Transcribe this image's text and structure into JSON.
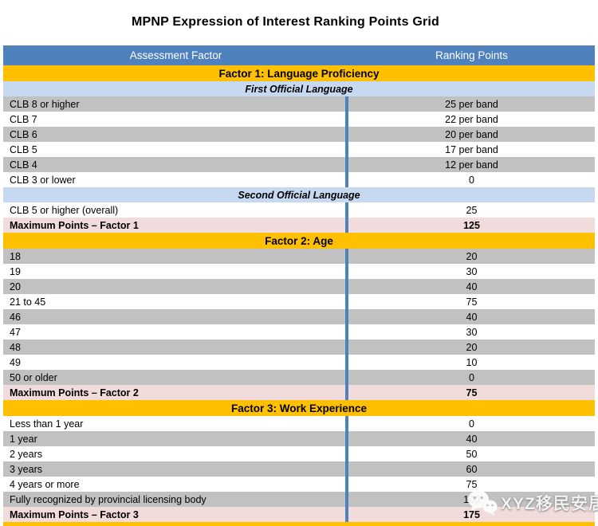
{
  "title": "MPNP Expression of Interest Ranking Points Grid",
  "colors": {
    "header_blue": "#4F81BD",
    "factor_gold": "#FFC000",
    "subheader_light_blue": "#C6D9F1",
    "row_gray": "#C1C1C1",
    "max_row_pink": "#F2DCDB",
    "divider_blue": "#4F81BD"
  },
  "watermark": {
    "icon": "wechat-bubbles-icon",
    "text": "XYZ移民安居"
  },
  "rows": [
    {
      "type": "header",
      "left": "Assessment Factor",
      "right": "Ranking Points"
    },
    {
      "type": "factor",
      "label": "Factor 1: Language Proficiency"
    },
    {
      "type": "sub",
      "label": "First Official Language"
    },
    {
      "type": "data",
      "shaded": true,
      "label": "CLB 8 or higher",
      "value": "25 per band"
    },
    {
      "type": "data",
      "shaded": false,
      "label": "CLB 7",
      "value": "22 per band"
    },
    {
      "type": "data",
      "shaded": true,
      "label": "CLB 6",
      "value": "20 per band"
    },
    {
      "type": "data",
      "shaded": false,
      "label": "CLB 5",
      "value": "17 per band"
    },
    {
      "type": "data",
      "shaded": true,
      "label": "CLB 4",
      "value": "12 per band"
    },
    {
      "type": "data",
      "shaded": false,
      "label": "CLB 3 or lower",
      "value": "0"
    },
    {
      "type": "sub",
      "label": "Second Official Language"
    },
    {
      "type": "data",
      "shaded": false,
      "label": "CLB 5 or higher (overall)",
      "value": "25"
    },
    {
      "type": "max",
      "label": "Maximum Points – Factor 1",
      "value": "125"
    },
    {
      "type": "factor",
      "label": "Factor 2: Age"
    },
    {
      "type": "data",
      "shaded": true,
      "label": "18",
      "value": "20"
    },
    {
      "type": "data",
      "shaded": false,
      "label": "19",
      "value": "30"
    },
    {
      "type": "data",
      "shaded": true,
      "label": "20",
      "value": "40"
    },
    {
      "type": "data",
      "shaded": false,
      "label": "21 to 45",
      "value": "75"
    },
    {
      "type": "data",
      "shaded": true,
      "label": "46",
      "value": "40"
    },
    {
      "type": "data",
      "shaded": false,
      "label": "47",
      "value": "30"
    },
    {
      "type": "data",
      "shaded": true,
      "label": "48",
      "value": "20"
    },
    {
      "type": "data",
      "shaded": false,
      "label": "49",
      "value": "10"
    },
    {
      "type": "data",
      "shaded": true,
      "label": "50 or older",
      "value": "0"
    },
    {
      "type": "max",
      "label": "Maximum Points – Factor 2",
      "value": "75"
    },
    {
      "type": "factor",
      "label": "Factor 3: Work Experience"
    },
    {
      "type": "data",
      "shaded": false,
      "label": "Less than 1 year",
      "value": "0"
    },
    {
      "type": "data",
      "shaded": true,
      "label": "1 year",
      "value": "40"
    },
    {
      "type": "data",
      "shaded": false,
      "label": "2 years",
      "value": "50"
    },
    {
      "type": "data",
      "shaded": true,
      "label": "3 years",
      "value": "60"
    },
    {
      "type": "data",
      "shaded": false,
      "label": "4 years or more",
      "value": "75"
    },
    {
      "type": "data",
      "shaded": true,
      "label": "Fully recognized by provincial licensing body",
      "value": "100"
    },
    {
      "type": "max",
      "label": "Maximum Points – Factor 3",
      "value": "175"
    },
    {
      "type": "strip"
    }
  ]
}
